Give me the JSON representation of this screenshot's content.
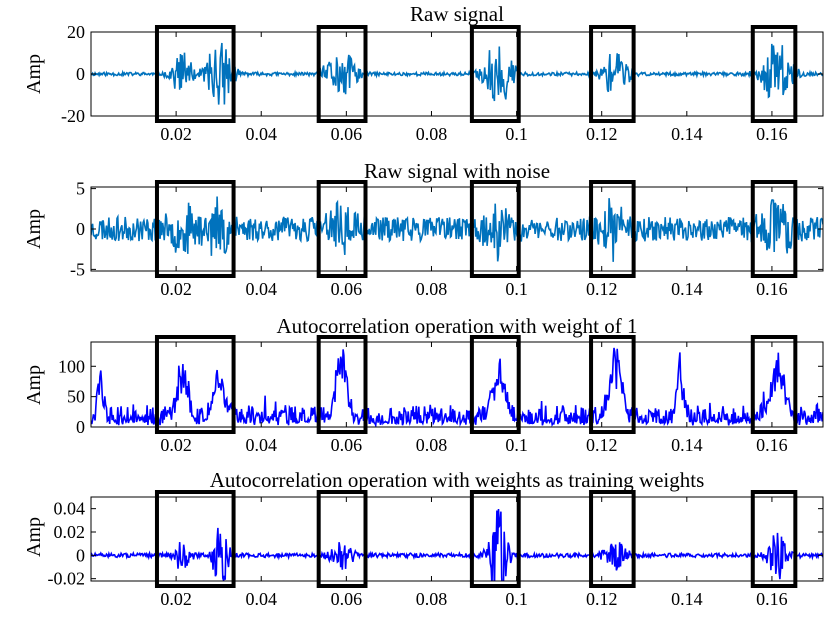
{
  "chart_data": [
    {
      "type": "line",
      "title": "Raw signal",
      "ylabel": "Amp",
      "xlabel": "",
      "xlim": [
        0,
        0.172
      ],
      "ylim": [
        -20,
        20
      ],
      "xticks": [
        0.02,
        0.04,
        0.06,
        0.08,
        0.1,
        0.12,
        0.14,
        0.16
      ],
      "xtick_labels": [
        "0.02",
        "0.04",
        "0.06",
        "0.08",
        "0.1",
        "0.12",
        "0.14",
        "0.16"
      ],
      "yticks": [
        -20,
        0,
        20
      ],
      "ytick_labels": [
        "-20",
        "0",
        "20"
      ],
      "color": "#0072BD",
      "signal": {
        "baseline": 0,
        "noise_amp": 0.8,
        "positive_only": false,
        "seed": 11
      },
      "bursts": [
        {
          "center": 0.0215,
          "width": 0.0018,
          "amp": 11
        },
        {
          "center": 0.0302,
          "width": 0.0022,
          "amp": 16
        },
        {
          "center": 0.0588,
          "width": 0.0026,
          "amp": 12
        },
        {
          "center": 0.0957,
          "width": 0.0024,
          "amp": 16
        },
        {
          "center": 0.1232,
          "width": 0.0024,
          "amp": 11
        },
        {
          "center": 0.1613,
          "width": 0.0026,
          "amp": 16
        }
      ]
    },
    {
      "type": "line",
      "title": "Raw signal with noise",
      "ylabel": "Amp",
      "xlabel": "",
      "xlim": [
        0,
        0.172
      ],
      "ylim": [
        -5.2,
        5.2
      ],
      "xticks": [
        0.02,
        0.04,
        0.06,
        0.08,
        0.1,
        0.12,
        0.14,
        0.16
      ],
      "xtick_labels": [
        "0.02",
        "0.04",
        "0.06",
        "0.08",
        "0.1",
        "0.12",
        "0.14",
        "0.16"
      ],
      "yticks": [
        -5,
        0,
        5
      ],
      "ytick_labels": [
        "-5",
        "0",
        "5"
      ],
      "color": "#0072BD",
      "signal": {
        "baseline": 0,
        "noise_amp": 1.5,
        "positive_only": false,
        "seed": 23
      },
      "bursts": [
        {
          "center": 0.0215,
          "width": 0.0022,
          "amp": 2.5
        },
        {
          "center": 0.0302,
          "width": 0.0024,
          "amp": 3.5
        },
        {
          "center": 0.0588,
          "width": 0.0028,
          "amp": 3
        },
        {
          "center": 0.0957,
          "width": 0.0026,
          "amp": 3.5
        },
        {
          "center": 0.1232,
          "width": 0.0026,
          "amp": 3
        },
        {
          "center": 0.1613,
          "width": 0.0028,
          "amp": 3.5
        }
      ]
    },
    {
      "type": "line",
      "title": "Autocorrelation operation with weight of 1",
      "ylabel": "Amp",
      "xlabel": "",
      "xlim": [
        0,
        0.172
      ],
      "ylim": [
        0,
        140
      ],
      "xticks": [
        0.02,
        0.04,
        0.06,
        0.08,
        0.1,
        0.12,
        0.14,
        0.16
      ],
      "xtick_labels": [
        "0.02",
        "0.04",
        "0.06",
        "0.08",
        "0.1",
        "0.12",
        "0.14",
        "0.16"
      ],
      "yticks": [
        0,
        50,
        100
      ],
      "ytick_labels": [
        "0",
        "50",
        "100"
      ],
      "color": "#0000FF",
      "signal": {
        "baseline": 8,
        "noise_amp": 14,
        "positive_only": true,
        "seed": 37
      },
      "bursts": [
        {
          "center": 0.0022,
          "width": 0.0006,
          "amp": 80
        },
        {
          "center": 0.0215,
          "width": 0.0012,
          "amp": 95
        },
        {
          "center": 0.0302,
          "width": 0.0014,
          "amp": 70
        },
        {
          "center": 0.0588,
          "width": 0.0012,
          "amp": 130
        },
        {
          "center": 0.0957,
          "width": 0.0016,
          "amp": 95
        },
        {
          "center": 0.1232,
          "width": 0.0014,
          "amp": 120
        },
        {
          "center": 0.1385,
          "width": 0.0008,
          "amp": 100
        },
        {
          "center": 0.1613,
          "width": 0.0016,
          "amp": 100
        }
      ]
    },
    {
      "type": "line",
      "title": "Autocorrelation operation with weights as training weights",
      "ylabel": "Amp",
      "xlabel": "",
      "xlim": [
        0,
        0.172
      ],
      "ylim": [
        -0.022,
        0.05
      ],
      "xticks": [
        0.02,
        0.04,
        0.06,
        0.08,
        0.1,
        0.12,
        0.14,
        0.16
      ],
      "xtick_labels": [
        "0.02",
        "0.04",
        "0.06",
        "0.08",
        "0.1",
        "0.12",
        "0.14",
        "0.16"
      ],
      "yticks": [
        -0.02,
        0,
        0.02,
        0.04
      ],
      "ytick_labels": [
        "-0.02",
        "0",
        "0.02",
        "0.04"
      ],
      "color": "#0000FF",
      "signal": {
        "baseline": 0,
        "noise_amp": 0.0018,
        "positive_only": false,
        "seed": 51
      },
      "bursts": [
        {
          "center": 0.0215,
          "width": 0.0014,
          "amp": 0.014
        },
        {
          "center": 0.0302,
          "width": 0.0014,
          "amp": 0.032
        },
        {
          "center": 0.0588,
          "width": 0.0018,
          "amp": 0.016
        },
        {
          "center": 0.0957,
          "width": 0.0016,
          "amp": 0.045
        },
        {
          "center": 0.1232,
          "width": 0.0018,
          "amp": 0.015
        },
        {
          "center": 0.1613,
          "width": 0.0018,
          "amp": 0.02
        }
      ]
    }
  ],
  "highlight_windows": [
    [
      0.0155,
      0.0335
    ],
    [
      0.0535,
      0.0645
    ],
    [
      0.0895,
      0.1005
    ],
    [
      0.1175,
      0.1275
    ],
    [
      0.1555,
      0.1655
    ]
  ],
  "highlight_color": "#000000"
}
